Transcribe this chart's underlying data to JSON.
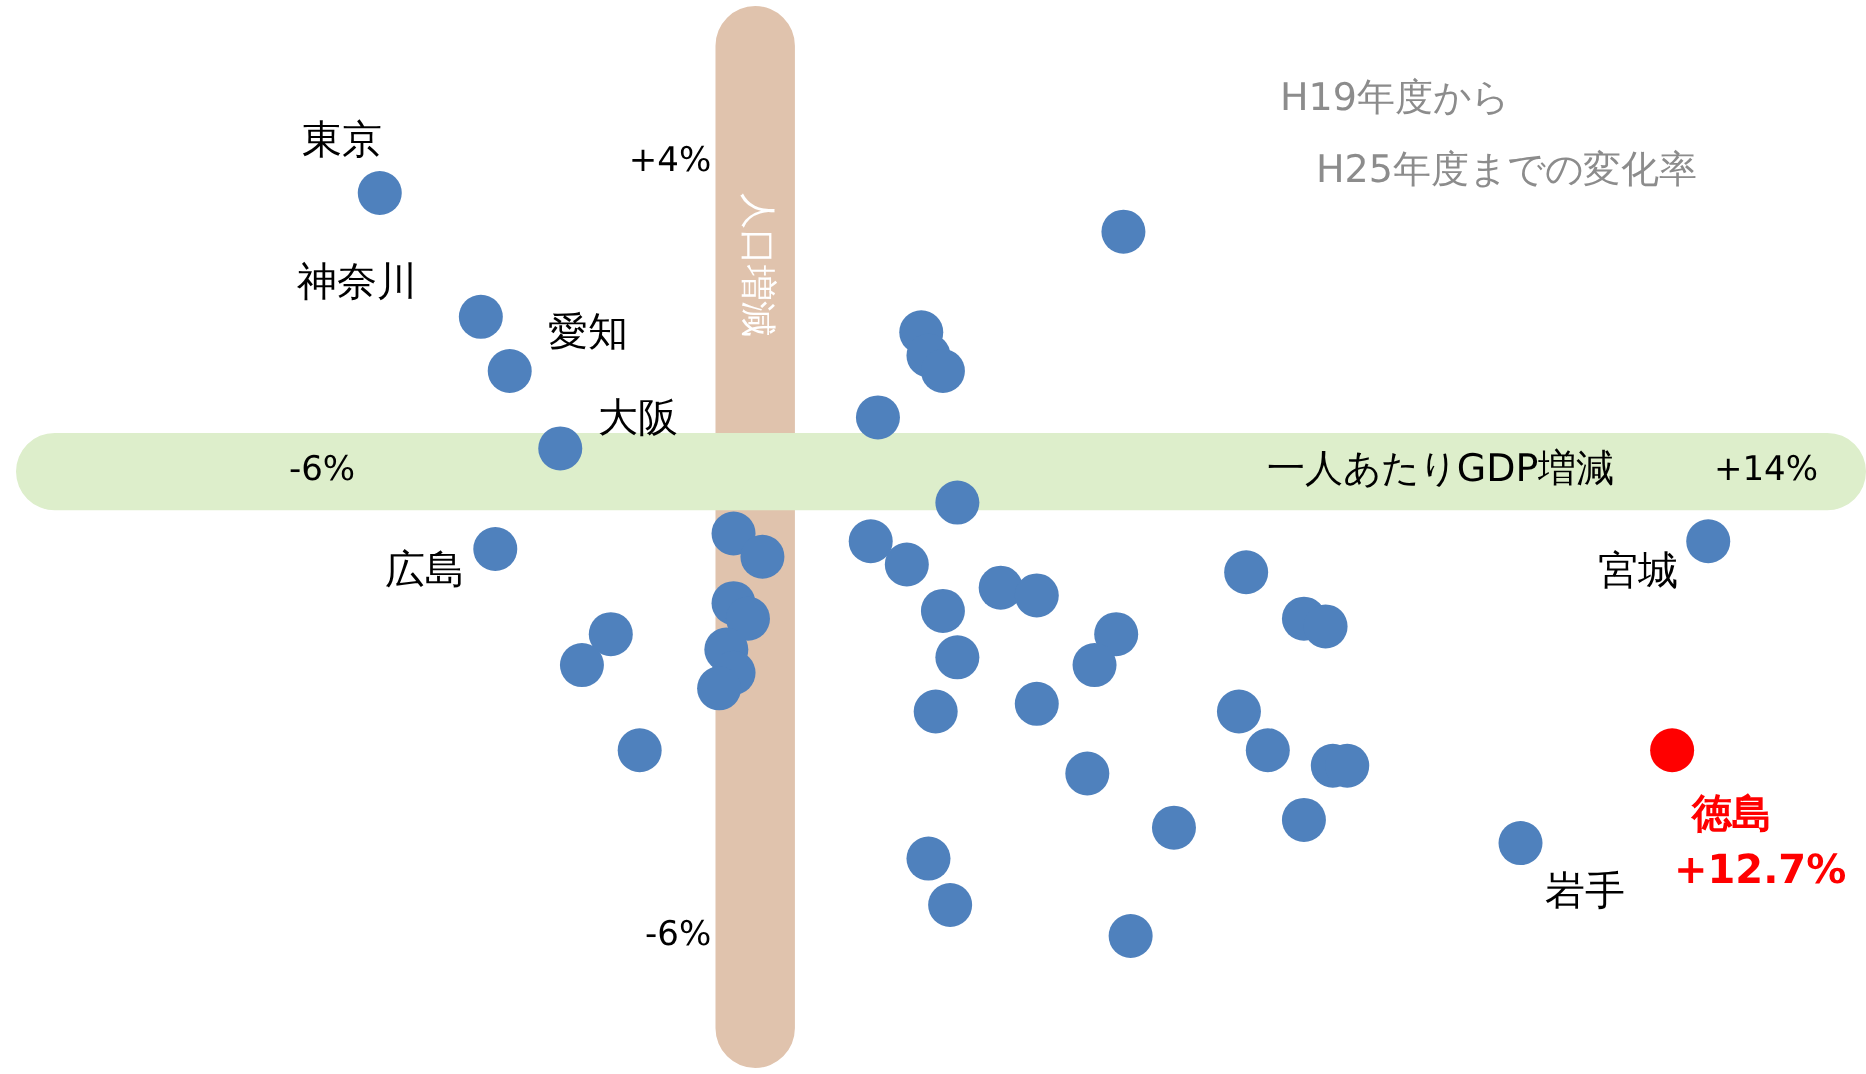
{
  "chart_data": {
    "type": "scatter",
    "xlabel": "一人あたりGDP増減",
    "ylabel": "人口増減",
    "xlim": [
      -6,
      14
    ],
    "ylim": [
      -6,
      4
    ],
    "xticks": [
      {
        "value": -6,
        "label": "-6%"
      },
      {
        "value": 14,
        "label": "+14%"
      }
    ],
    "yticks": [
      {
        "value": 4,
        "label": "+4%"
      },
      {
        "value": -6,
        "label": "-6%"
      }
    ],
    "legend": false,
    "marker": "circle",
    "bands": [
      {
        "axis": "x",
        "from": -0.55,
        "to": 0.55,
        "color": "#e0c3ad"
      },
      {
        "axis": "y",
        "from": -0.5,
        "to": 0.5,
        "color": "#ddeecb"
      }
    ],
    "x": [
      -5.2,
      -3.8,
      -3.4,
      -2.7,
      -3.6,
      -2.0,
      -2.4,
      -1.6,
      -0.3,
      0.1,
      -0.3,
      -0.1,
      -0.4,
      -0.3,
      -0.5,
      1.7,
      2.3,
      2.4,
      2.6,
      5.1,
      2.8,
      1.6,
      2.1,
      2.6,
      2.8,
      2.5,
      3.4,
      3.9,
      5.0,
      4.7,
      3.9,
      4.6,
      2.4,
      2.7,
      5.2,
      5.8,
      6.8,
      7.6,
      7.9,
      6.7,
      7.1,
      8.0,
      8.2,
      7.6,
      10.6,
      13.2,
      12.7
    ],
    "values": [
      3.6,
      2.0,
      1.3,
      0.3,
      -1.0,
      -2.1,
      -2.5,
      -3.6,
      -0.8,
      -1.1,
      -1.7,
      -1.9,
      -2.3,
      -2.6,
      -2.8,
      0.7,
      1.8,
      1.5,
      1.3,
      3.1,
      -0.4,
      -0.9,
      -1.2,
      -1.8,
      -2.4,
      -3.1,
      -1.5,
      -1.6,
      -2.1,
      -2.5,
      -3.0,
      -3.9,
      -5.0,
      -5.6,
      -6.0,
      -4.6,
      -1.3,
      -1.9,
      -2.0,
      -3.1,
      -3.6,
      -3.8,
      -3.8,
      -4.5,
      -4.8,
      -0.9,
      -3.6
    ],
    "colors": [
      "#4f81bd",
      "#4f81bd",
      "#4f81bd",
      "#4f81bd",
      "#4f81bd",
      "#4f81bd",
      "#4f81bd",
      "#4f81bd",
      "#4f81bd",
      "#4f81bd",
      "#4f81bd",
      "#4f81bd",
      "#4f81bd",
      "#4f81bd",
      "#4f81bd",
      "#4f81bd",
      "#4f81bd",
      "#4f81bd",
      "#4f81bd",
      "#4f81bd",
      "#4f81bd",
      "#4f81bd",
      "#4f81bd",
      "#4f81bd",
      "#4f81bd",
      "#4f81bd",
      "#4f81bd",
      "#4f81bd",
      "#4f81bd",
      "#4f81bd",
      "#4f81bd",
      "#4f81bd",
      "#4f81bd",
      "#4f81bd",
      "#4f81bd",
      "#4f81bd",
      "#4f81bd",
      "#4f81bd",
      "#4f81bd",
      "#4f81bd",
      "#4f81bd",
      "#4f81bd",
      "#4f81bd",
      "#4f81bd",
      "#4f81bd",
      "#4f81bd",
      "#ff0000"
    ],
    "annotations": [
      "H19年度から\nH25年度までの変化率",
      {
        "text": "東京",
        "x": -5.2,
        "y": 3.6
      },
      {
        "text": "神奈川",
        "x": -3.8,
        "y": 2.0
      },
      {
        "text": "愛知",
        "x": -3.4,
        "y": 1.3
      },
      {
        "text": "大阪",
        "x": -2.7,
        "y": 0.3
      },
      {
        "text": "広島",
        "x": -3.6,
        "y": -1.0
      },
      {
        "text": "宮城",
        "x": 13.2,
        "y": -0.9
      },
      {
        "text": "岩手",
        "x": 10.6,
        "y": -4.8
      },
      {
        "text": "徳島",
        "x": 12.7,
        "y": -3.6
      },
      {
        "text": "+12.7%",
        "x": 12.7,
        "y": -3.6
      }
    ]
  }
}
